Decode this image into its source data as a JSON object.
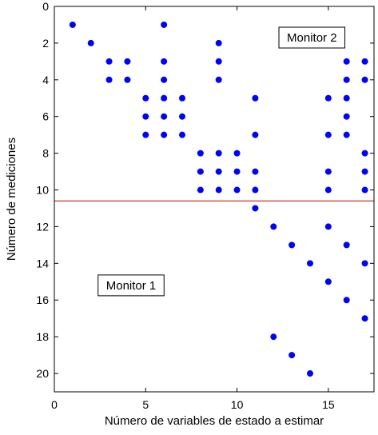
{
  "chart_data": {
    "type": "scatter",
    "xlabel": "Número de variables de estado a estimar",
    "ylabel": "Número de mediciones",
    "xlim": [
      0,
      17.5
    ],
    "ylim": [
      0,
      21
    ],
    "y_inverted": true,
    "xticks": [
      0,
      5,
      10,
      15
    ],
    "yticks": [
      0,
      2,
      4,
      6,
      8,
      10,
      12,
      14,
      16,
      18,
      20
    ],
    "grid": false,
    "marker_color": "#0000ff",
    "divider_line": {
      "y": 10.6,
      "color": "#cc0000"
    },
    "annotations": [
      {
        "text": "Monitor 2",
        "x": 14.1,
        "y": 1.7
      },
      {
        "text": "Monitor 1",
        "x": 4.2,
        "y": 15.2
      }
    ],
    "points": [
      [
        1,
        1
      ],
      [
        2,
        2
      ],
      [
        3,
        3
      ],
      [
        3,
        4
      ],
      [
        4,
        3
      ],
      [
        4,
        4
      ],
      [
        5,
        5
      ],
      [
        5,
        6
      ],
      [
        5,
        7
      ],
      [
        6,
        1
      ],
      [
        6,
        3
      ],
      [
        6,
        4
      ],
      [
        6,
        5
      ],
      [
        6,
        6
      ],
      [
        6,
        7
      ],
      [
        7,
        5
      ],
      [
        7,
        6
      ],
      [
        7,
        7
      ],
      [
        8,
        8
      ],
      [
        8,
        9
      ],
      [
        8,
        10
      ],
      [
        9,
        2
      ],
      [
        9,
        3
      ],
      [
        9,
        4
      ],
      [
        9,
        8
      ],
      [
        9,
        9
      ],
      [
        9,
        10
      ],
      [
        10,
        8
      ],
      [
        10,
        9
      ],
      [
        10,
        10
      ],
      [
        11,
        5
      ],
      [
        11,
        7
      ],
      [
        11,
        9
      ],
      [
        11,
        10
      ],
      [
        11,
        11
      ],
      [
        12,
        12
      ],
      [
        12,
        18
      ],
      [
        13,
        13
      ],
      [
        13,
        19
      ],
      [
        14,
        14
      ],
      [
        14,
        20
      ],
      [
        15,
        5
      ],
      [
        15,
        7
      ],
      [
        15,
        9
      ],
      [
        15,
        10
      ],
      [
        15,
        12
      ],
      [
        15,
        15
      ],
      [
        16,
        3
      ],
      [
        16,
        4
      ],
      [
        16,
        5
      ],
      [
        16,
        6
      ],
      [
        16,
        7
      ],
      [
        16,
        13
      ],
      [
        16,
        16
      ],
      [
        17,
        3
      ],
      [
        17,
        4
      ],
      [
        17,
        8
      ],
      [
        17,
        9
      ],
      [
        17,
        10
      ],
      [
        17,
        14
      ],
      [
        17,
        17
      ]
    ]
  }
}
